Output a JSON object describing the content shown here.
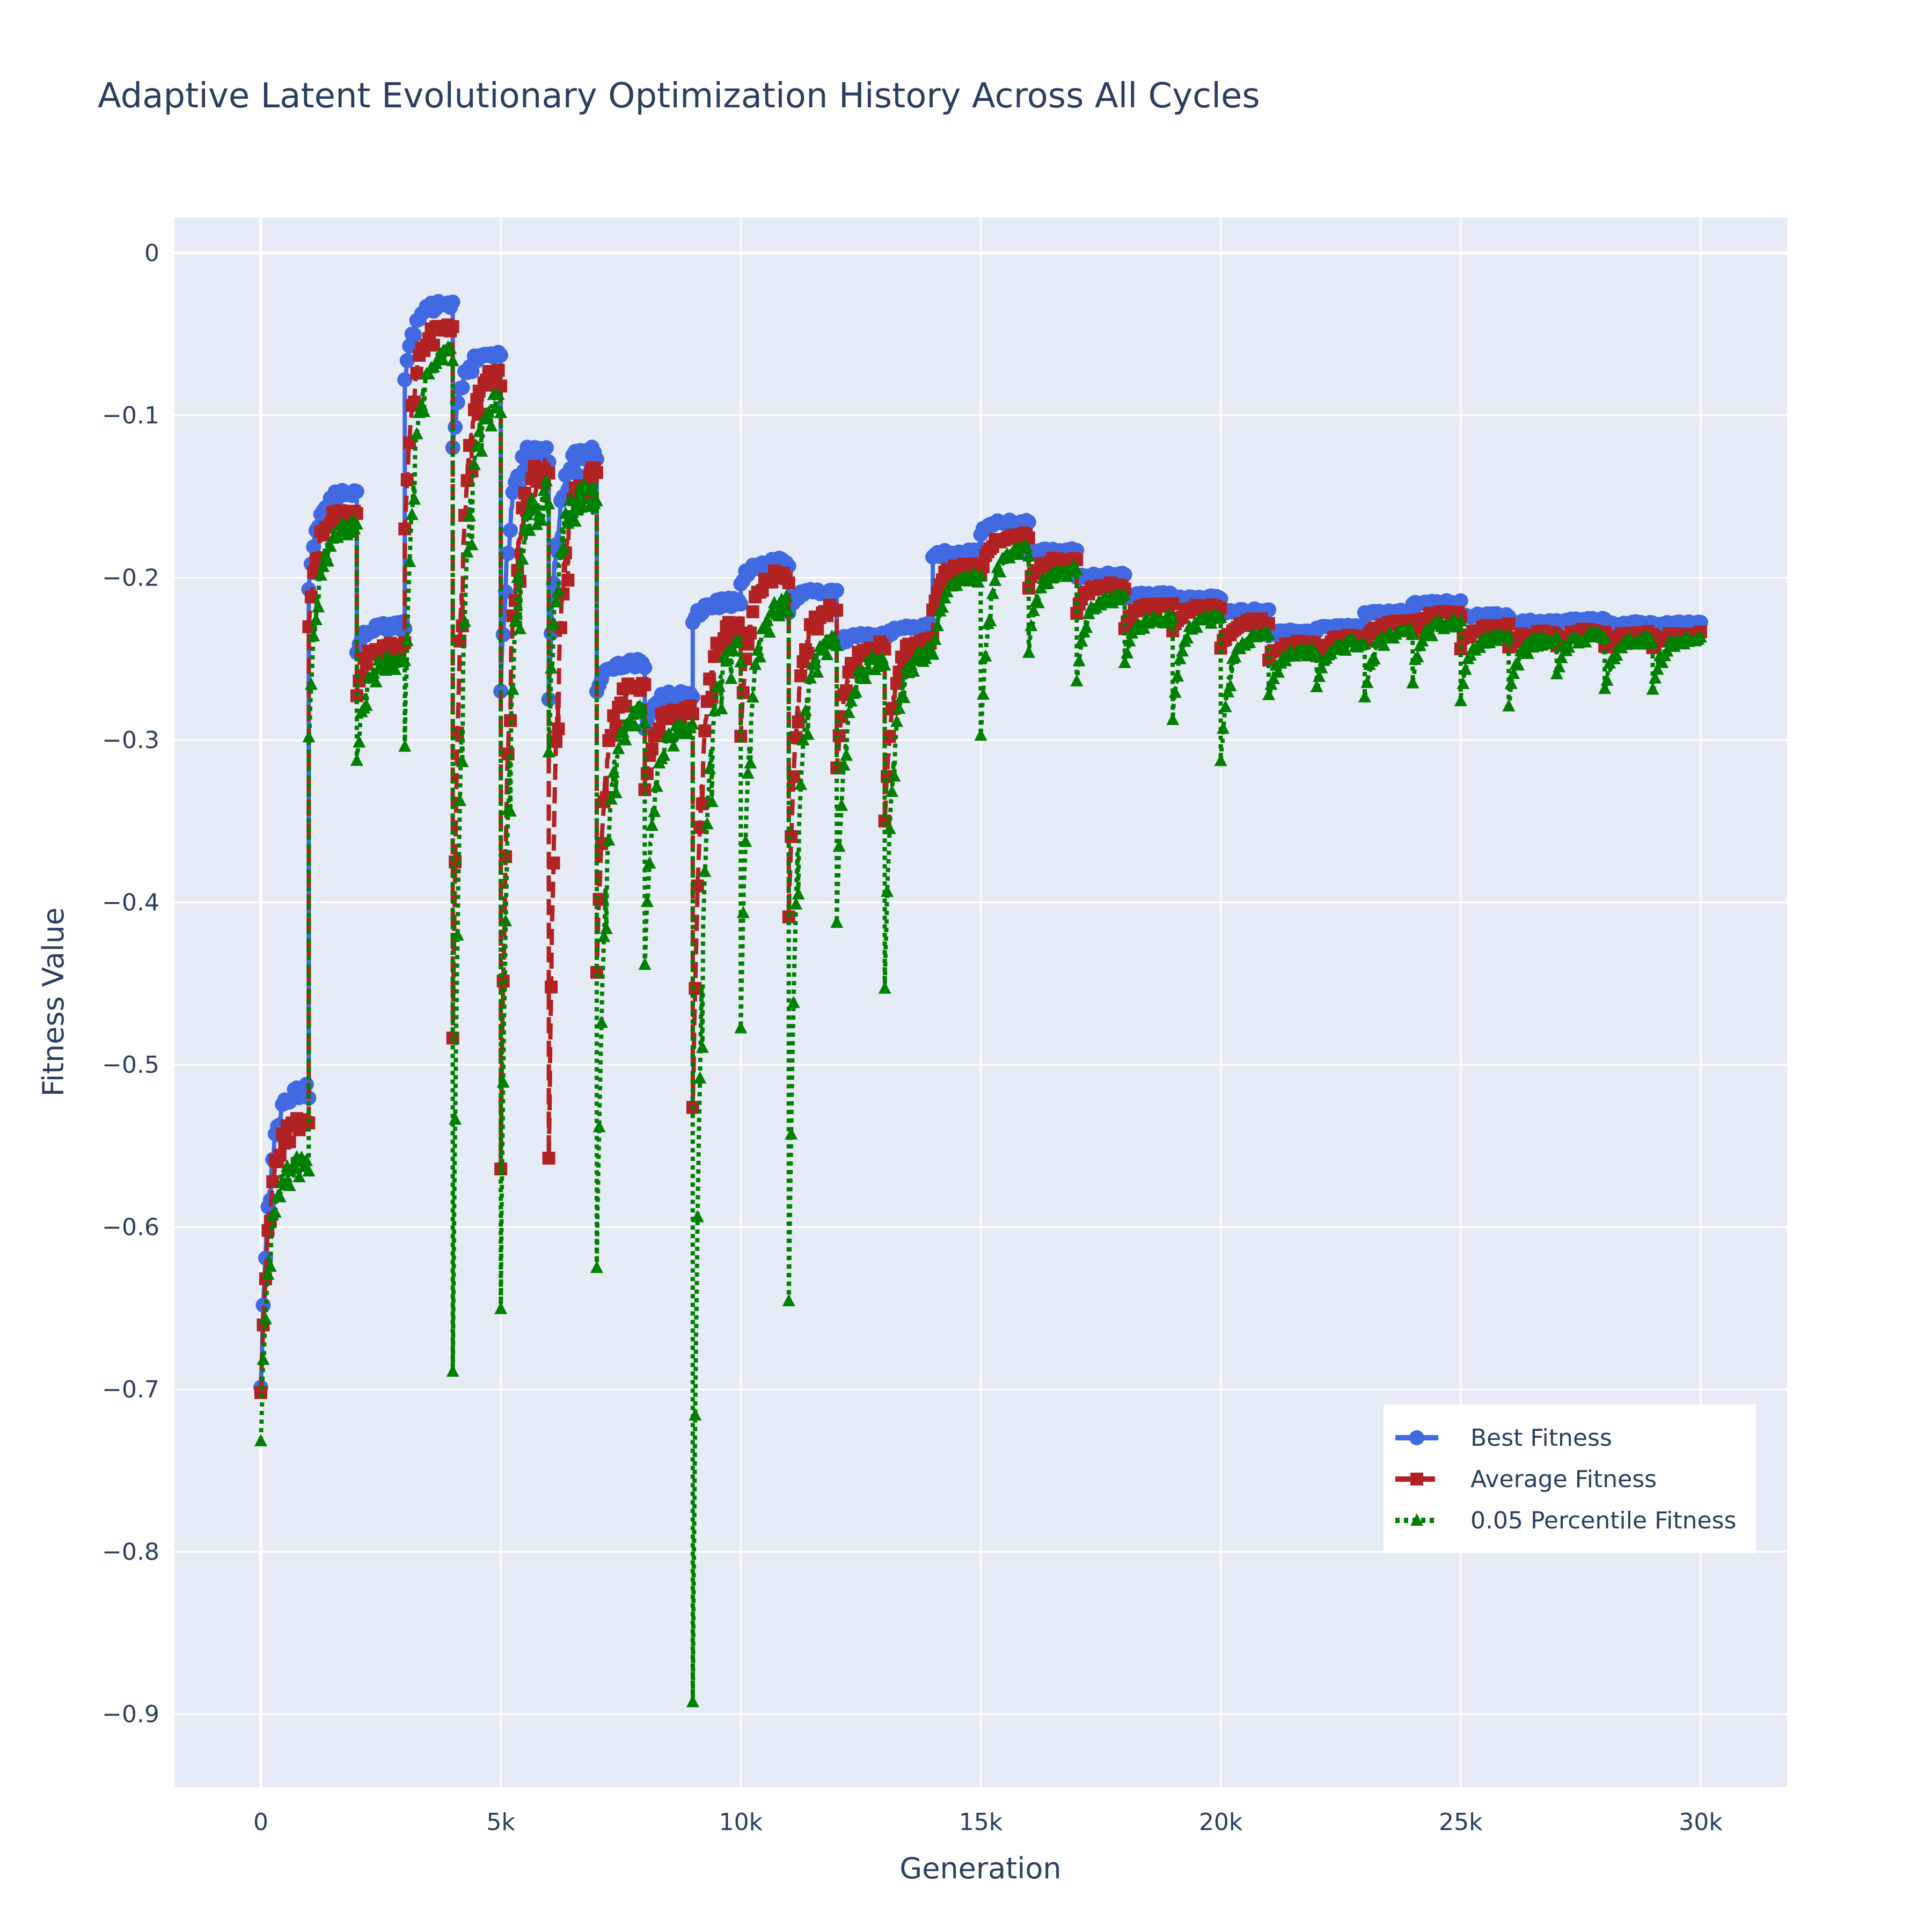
{
  "chart_data": {
    "type": "line",
    "title": "Adaptive Latent Evolutionary Optimization History Across All Cycles",
    "xlabel": "Generation",
    "ylabel": "Fitness Value",
    "xlim": [
      -1800,
      31800
    ],
    "ylim": [
      -0.945,
      0.022
    ],
    "x_ticks": [
      0,
      5000,
      10000,
      15000,
      20000,
      25000,
      30000
    ],
    "x_tick_labels": [
      "0",
      "5k",
      "10k",
      "15k",
      "20k",
      "25k",
      "30k"
    ],
    "y_ticks": [
      0,
      -0.1,
      -0.2,
      -0.3,
      -0.4,
      -0.5,
      -0.6,
      -0.7,
      -0.8,
      -0.9
    ],
    "y_tick_labels": [
      "0",
      "−0.1",
      "−0.2",
      "−0.3",
      "−0.4",
      "−0.5",
      "−0.6",
      "−0.7",
      "−0.8",
      "−0.9"
    ],
    "grid": true,
    "legend_position": "bottom-right",
    "background": "#e5ecf6",
    "cycle_length": 1000,
    "series": [
      {
        "name": "Best Fitness",
        "color": "#4169e1",
        "line": "solid",
        "marker": "circle",
        "cycles": [
          {
            "start": -0.7,
            "end": -0.515,
            "noise": 0.004
          },
          {
            "start": -0.205,
            "end": -0.148,
            "noise": 0.003
          },
          {
            "start": -0.245,
            "end": -0.23,
            "noise": 0.003
          },
          {
            "start": -0.08,
            "end": -0.032,
            "noise": 0.003
          },
          {
            "start": -0.12,
            "end": -0.062,
            "noise": 0.003
          },
          {
            "start": -0.27,
            "end": -0.122,
            "noise": 0.008
          },
          {
            "start": -0.27,
            "end": -0.122,
            "noise": 0.006
          },
          {
            "start": -0.27,
            "end": -0.253,
            "noise": 0.003
          },
          {
            "start": -0.29,
            "end": -0.272,
            "noise": 0.003
          },
          {
            "start": -0.23,
            "end": -0.215,
            "noise": 0.003
          },
          {
            "start": -0.205,
            "end": -0.19,
            "noise": 0.003
          },
          {
            "start": -0.22,
            "end": -0.208,
            "noise": 0.002
          },
          {
            "start": -0.242,
            "end": -0.235,
            "noise": 0.002
          },
          {
            "start": -0.237,
            "end": -0.23,
            "noise": 0.002
          },
          {
            "start": -0.188,
            "end": -0.184,
            "noise": 0.002
          },
          {
            "start": -0.172,
            "end": -0.166,
            "noise": 0.002
          },
          {
            "start": -0.185,
            "end": -0.183,
            "noise": 0.001
          },
          {
            "start": -0.2,
            "end": -0.198,
            "noise": 0.001
          },
          {
            "start": -0.212,
            "end": -0.21,
            "noise": 0.001
          },
          {
            "start": -0.213,
            "end": -0.212,
            "noise": 0.001
          },
          {
            "start": -0.222,
            "end": -0.22,
            "noise": 0.001
          },
          {
            "start": -0.235,
            "end": -0.233,
            "noise": 0.001
          },
          {
            "start": -0.232,
            "end": -0.23,
            "noise": 0.001
          },
          {
            "start": -0.222,
            "end": -0.221,
            "noise": 0.001
          },
          {
            "start": -0.216,
            "end": -0.215,
            "noise": 0.001
          },
          {
            "start": -0.224,
            "end": -0.223,
            "noise": 0.001
          },
          {
            "start": -0.228,
            "end": -0.227,
            "noise": 0.001
          },
          {
            "start": -0.227,
            "end": -0.226,
            "noise": 0.001
          },
          {
            "start": -0.229,
            "end": -0.228,
            "noise": 0.001
          },
          {
            "start": -0.229,
            "end": -0.228,
            "noise": 0.001
          }
        ]
      },
      {
        "name": "Average Fitness",
        "color": "#b22222",
        "line": "dash",
        "marker": "square",
        "cycles": [
          {
            "start": -0.705,
            "end": -0.535,
            "noise": 0.005
          },
          {
            "start": -0.23,
            "end": -0.16,
            "noise": 0.004
          },
          {
            "start": -0.27,
            "end": -0.242,
            "noise": 0.004
          },
          {
            "start": -0.17,
            "end": -0.045,
            "noise": 0.004
          },
          {
            "start": -0.48,
            "end": -0.072,
            "noise": 0.004
          },
          {
            "start": -0.56,
            "end": -0.135,
            "noise": 0.01
          },
          {
            "start": -0.56,
            "end": -0.135,
            "noise": 0.008
          },
          {
            "start": -0.44,
            "end": -0.265,
            "noise": 0.004
          },
          {
            "start": -0.33,
            "end": -0.282,
            "noise": 0.004
          },
          {
            "start": -0.53,
            "end": -0.228,
            "noise": 0.004
          },
          {
            "start": -0.3,
            "end": -0.198,
            "noise": 0.004
          },
          {
            "start": -0.41,
            "end": -0.218,
            "noise": 0.003
          },
          {
            "start": -0.32,
            "end": -0.242,
            "noise": 0.003
          },
          {
            "start": -0.35,
            "end": -0.237,
            "noise": 0.003
          },
          {
            "start": -0.22,
            "end": -0.192,
            "noise": 0.002
          },
          {
            "start": -0.2,
            "end": -0.174,
            "noise": 0.002
          },
          {
            "start": -0.205,
            "end": -0.189,
            "noise": 0.002
          },
          {
            "start": -0.22,
            "end": -0.205,
            "noise": 0.002
          },
          {
            "start": -0.23,
            "end": -0.217,
            "noise": 0.002
          },
          {
            "start": -0.232,
            "end": -0.218,
            "noise": 0.002
          },
          {
            "start": -0.245,
            "end": -0.227,
            "noise": 0.002
          },
          {
            "start": -0.25,
            "end": -0.24,
            "noise": 0.002
          },
          {
            "start": -0.248,
            "end": -0.237,
            "noise": 0.002
          },
          {
            "start": -0.24,
            "end": -0.228,
            "noise": 0.002
          },
          {
            "start": -0.235,
            "end": -0.222,
            "noise": 0.002
          },
          {
            "start": -0.242,
            "end": -0.23,
            "noise": 0.002
          },
          {
            "start": -0.243,
            "end": -0.234,
            "noise": 0.002
          },
          {
            "start": -0.242,
            "end": -0.233,
            "noise": 0.002
          },
          {
            "start": -0.243,
            "end": -0.235,
            "noise": 0.002
          },
          {
            "start": -0.243,
            "end": -0.235,
            "noise": 0.002
          }
        ]
      },
      {
        "name": "0.05 Percentile Fitness",
        "color": "#008000",
        "line": "dot",
        "marker": "triangle-up",
        "cycles": [
          {
            "start": -0.73,
            "end": -0.56,
            "noise": 0.006
          },
          {
            "start": -0.3,
            "end": -0.168,
            "noise": 0.005
          },
          {
            "start": -0.315,
            "end": -0.25,
            "noise": 0.005
          },
          {
            "start": -0.3,
            "end": -0.06,
            "noise": 0.005
          },
          {
            "start": -0.69,
            "end": -0.088,
            "noise": 0.005
          },
          {
            "start": -0.64,
            "end": -0.15,
            "noise": 0.012
          },
          {
            "start": -0.3,
            "end": -0.15,
            "noise": 0.01
          },
          {
            "start": -0.625,
            "end": -0.28,
            "noise": 0.005
          },
          {
            "start": -0.44,
            "end": -0.292,
            "noise": 0.005
          },
          {
            "start": -0.888,
            "end": -0.24,
            "noise": 0.005
          },
          {
            "start": -0.475,
            "end": -0.215,
            "noise": 0.005
          },
          {
            "start": -0.648,
            "end": -0.235,
            "noise": 0.004
          },
          {
            "start": -0.41,
            "end": -0.25,
            "noise": 0.004
          },
          {
            "start": -0.45,
            "end": -0.245,
            "noise": 0.004
          },
          {
            "start": -0.25,
            "end": -0.2,
            "noise": 0.003
          },
          {
            "start": -0.3,
            "end": -0.182,
            "noise": 0.003
          },
          {
            "start": -0.245,
            "end": -0.195,
            "noise": 0.003
          },
          {
            "start": -0.265,
            "end": -0.212,
            "noise": 0.003
          },
          {
            "start": -0.25,
            "end": -0.225,
            "noise": 0.003
          },
          {
            "start": -0.285,
            "end": -0.225,
            "noise": 0.003
          },
          {
            "start": -0.315,
            "end": -0.235,
            "noise": 0.003
          },
          {
            "start": -0.272,
            "end": -0.245,
            "noise": 0.003
          },
          {
            "start": -0.27,
            "end": -0.24,
            "noise": 0.003
          },
          {
            "start": -0.275,
            "end": -0.233,
            "noise": 0.003
          },
          {
            "start": -0.262,
            "end": -0.228,
            "noise": 0.003
          },
          {
            "start": -0.273,
            "end": -0.236,
            "noise": 0.003
          },
          {
            "start": -0.278,
            "end": -0.238,
            "noise": 0.003
          },
          {
            "start": -0.258,
            "end": -0.236,
            "noise": 0.003
          },
          {
            "start": -0.27,
            "end": -0.238,
            "noise": 0.003
          },
          {
            "start": -0.27,
            "end": -0.238,
            "noise": 0.003
          }
        ]
      }
    ]
  }
}
